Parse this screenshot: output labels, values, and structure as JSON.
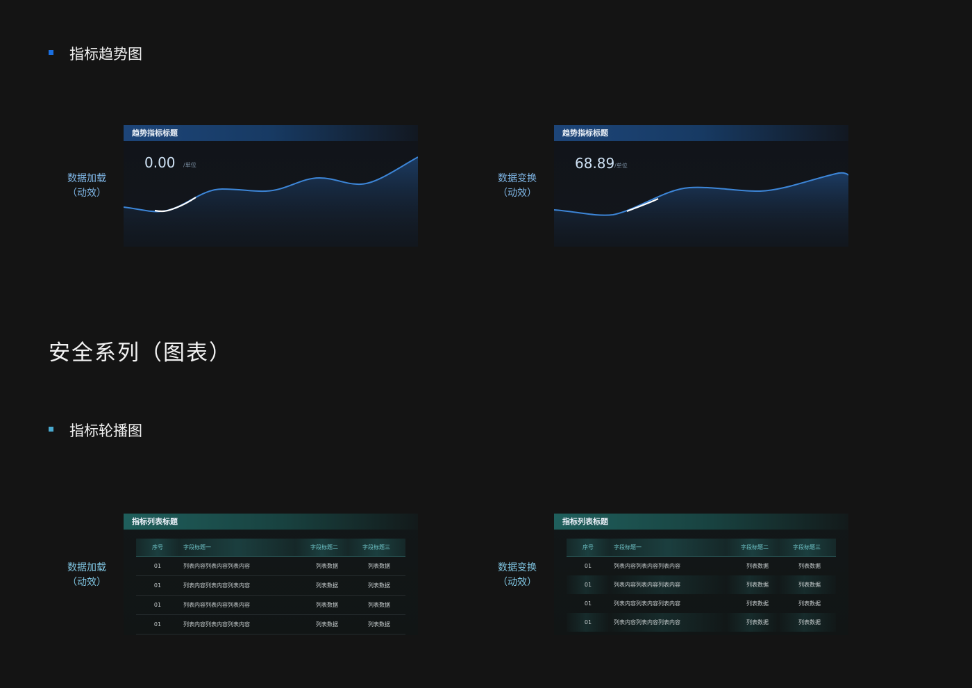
{
  "section_trend": {
    "title": "指标趋势图",
    "bullet_color": "#1a6fe0"
  },
  "series_title": "安全系列（图表）",
  "section_carousel": {
    "title": "指标轮播图",
    "bullet_color": "#49a9cf"
  },
  "trend_cards": [
    {
      "side_label_1": "数据加载",
      "side_label_2": "（动效）",
      "header": "趋势指标标题",
      "value": "0.00",
      "unit": "/单位"
    },
    {
      "side_label_1": "数据变换",
      "side_label_2": "（动效）",
      "header": "趋势指标标题",
      "value": "68.89",
      "unit": "/单位"
    }
  ],
  "table_cards": [
    {
      "side_label_1": "数据加载",
      "side_label_2": "（动效）",
      "header": "指标列表标题",
      "columns": [
        "序号",
        "字段标题一",
        "字段标题二",
        "字段标题三"
      ],
      "rows": [
        [
          "01",
          "列表内容列表内容列表内容",
          "列表数据",
          "列表数据"
        ],
        [
          "01",
          "列表内容列表内容列表内容",
          "列表数据",
          "列表数据"
        ],
        [
          "01",
          "列表内容列表内容列表内容",
          "列表数据",
          "列表数据"
        ],
        [
          "01",
          "列表内容列表内容列表内容",
          "列表数据",
          "列表数据"
        ]
      ]
    },
    {
      "side_label_1": "数据变换",
      "side_label_2": "（动效）",
      "header": "指标列表标题",
      "columns": [
        "序号",
        "字段标题一",
        "字段标题二",
        "字段标题三"
      ],
      "rows": [
        [
          "01",
          "列表内容列表内容列表内容",
          "列表数据",
          "列表数据"
        ],
        [
          "01",
          "列表内容列表内容列表内容",
          "列表数据",
          "列表数据"
        ],
        [
          "01",
          "列表内容列表内容列表内容",
          "列表数据",
          "列表数据"
        ],
        [
          "01",
          "列表内容列表内容列表内容",
          "列表数据",
          "列表数据"
        ]
      ]
    }
  ],
  "colors": {
    "line": "#3d86d8",
    "highlight": "#ffffff",
    "teal_header": "#1f5f5c",
    "blue_header": "#1d4579"
  }
}
